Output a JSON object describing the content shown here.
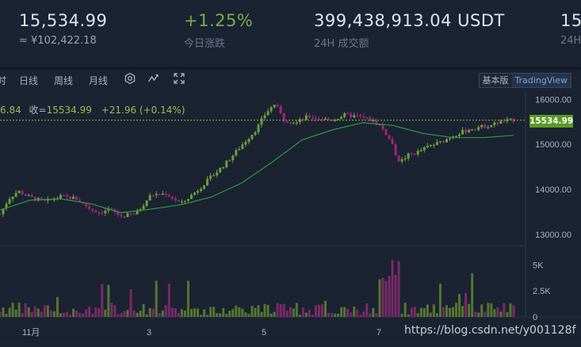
{
  "stats": {
    "last_price": "15,534.99",
    "cny_price": "≈ ¥102,422.18",
    "change_pct": "+1.25%",
    "change_label": "今日涨跌",
    "volume_24h": "399,438,913.04 USDT",
    "volume_label": "24H 成交额",
    "partial_value": "15,",
    "partial_label": "24H"
  },
  "toolbar": {
    "cut_item": "时",
    "items": [
      "日线",
      "周线",
      "月线"
    ],
    "icons": [
      "settings-icon",
      "indicator-icon",
      "fullscreen-icon"
    ],
    "modes": [
      "基本版",
      "TradingView"
    ],
    "active_mode": "TradingView"
  },
  "legend": {
    "cut_value": "6.84",
    "close_label": "收=",
    "close_value": "15534.99",
    "change": "+21.96 (+0.14%)"
  },
  "price_tag": "15534.99",
  "watermark": "https://blog.csdn.net/y001128f",
  "colors": {
    "up": "#6aa03a",
    "down": "#a0257b",
    "ma": "#2a9b3a",
    "last_line": "#86b92c",
    "background": "#1b2232"
  },
  "chart_data": {
    "type": "candlestick",
    "y_ticks": [
      "16000.00",
      "15000.00",
      "14000.00",
      "13000.00"
    ],
    "y_values": [
      16000,
      15000,
      14000,
      13000
    ],
    "ylim": [
      12750,
      16200
    ],
    "volume_ticks": [
      "5K",
      "2.5K",
      "0"
    ],
    "volume_values": [
      5000,
      2500,
      0
    ],
    "volume_max": 6400,
    "x_labels": [
      "11月",
      "3",
      "5",
      "7"
    ],
    "last_price": 15534.99,
    "price_path": [
      [
        0,
        13450
      ],
      [
        0.03,
        13800
      ],
      [
        0.06,
        13960
      ],
      [
        0.1,
        13820
      ],
      [
        0.15,
        13720
      ],
      [
        0.2,
        13840
      ],
      [
        0.25,
        13800
      ],
      [
        0.3,
        13560
      ],
      [
        0.33,
        13480
      ],
      [
        0.36,
        13560
      ],
      [
        0.4,
        13400
      ],
      [
        0.45,
        13460
      ],
      [
        0.5,
        13880
      ],
      [
        0.55,
        13900
      ],
      [
        0.6,
        13680
      ],
      [
        0.65,
        13960
      ],
      [
        0.7,
        14280
      ],
      [
        0.75,
        14600
      ],
      [
        0.8,
        14980
      ],
      [
        0.85,
        15350
      ],
      [
        0.88,
        15700
      ],
      [
        0.91,
        15900
      ],
      [
        0.94,
        15550
      ],
      [
        0.98,
        15480
      ],
      [
        1.02,
        15620
      ],
      [
        1.06,
        15570
      ],
      [
        1.1,
        15540
      ],
      [
        1.14,
        15650
      ],
      [
        1.18,
        15620
      ],
      [
        1.22,
        15560
      ],
      [
        1.26,
        15420
      ],
      [
        1.3,
        14980
      ],
      [
        1.32,
        14580
      ],
      [
        1.35,
        14760
      ],
      [
        1.38,
        14820
      ],
      [
        1.42,
        14960
      ],
      [
        1.46,
        15050
      ],
      [
        1.5,
        15200
      ],
      [
        1.54,
        15300
      ],
      [
        1.58,
        15380
      ],
      [
        1.62,
        15420
      ],
      [
        1.66,
        15510
      ],
      [
        1.7,
        15540
      ]
    ],
    "ma_path": [
      [
        0,
        13540
      ],
      [
        0.1,
        13760
      ],
      [
        0.2,
        13790
      ],
      [
        0.3,
        13680
      ],
      [
        0.4,
        13480
      ],
      [
        0.5,
        13560
      ],
      [
        0.6,
        13660
      ],
      [
        0.7,
        13830
      ],
      [
        0.8,
        14140
      ],
      [
        0.9,
        14600
      ],
      [
        1.0,
        15100
      ],
      [
        1.1,
        15320
      ],
      [
        1.2,
        15480
      ],
      [
        1.3,
        15420
      ],
      [
        1.4,
        15240
      ],
      [
        1.5,
        15150
      ],
      [
        1.6,
        15150
      ],
      [
        1.7,
        15200
      ]
    ]
  }
}
